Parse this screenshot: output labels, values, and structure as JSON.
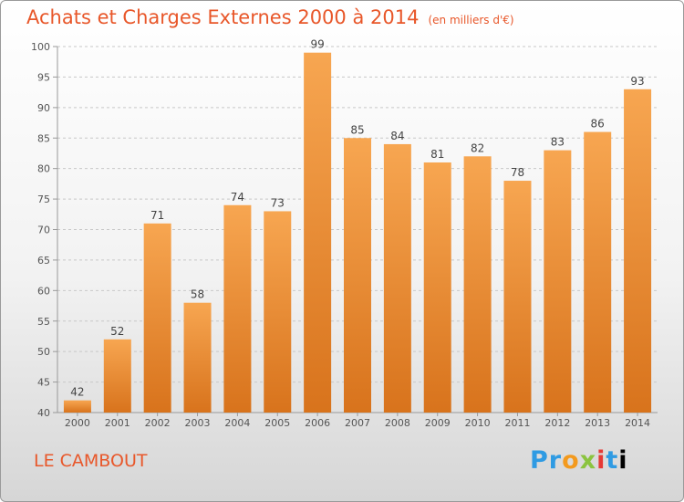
{
  "header": {
    "title": "Achats et Charges Externes 2000 à 2014",
    "unit": "(en milliers d'€)"
  },
  "footer": {
    "place": "LE CAMBOUT",
    "logo_text": "Proxiti"
  },
  "colors": {
    "accent": "#e8572a",
    "bar_light": "#f7a651",
    "bar_dark": "#d8731c"
  },
  "chart_data": {
    "type": "bar",
    "title": "Achats et Charges Externes 2000 à 2014",
    "subtitle": "(en milliers d'€)",
    "xlabel": "",
    "ylabel": "",
    "categories": [
      "2000",
      "2001",
      "2002",
      "2003",
      "2004",
      "2005",
      "2006",
      "2007",
      "2008",
      "2009",
      "2010",
      "2011",
      "2012",
      "2013",
      "2014"
    ],
    "values": [
      42,
      52,
      71,
      58,
      74,
      73,
      99,
      85,
      84,
      81,
      82,
      78,
      83,
      86,
      93
    ],
    "ylim": [
      40,
      100
    ],
    "yticks": [
      40,
      45,
      50,
      55,
      60,
      65,
      70,
      75,
      80,
      85,
      90,
      95,
      100
    ],
    "grid": "horizontal-dashed",
    "data_labels": true
  }
}
